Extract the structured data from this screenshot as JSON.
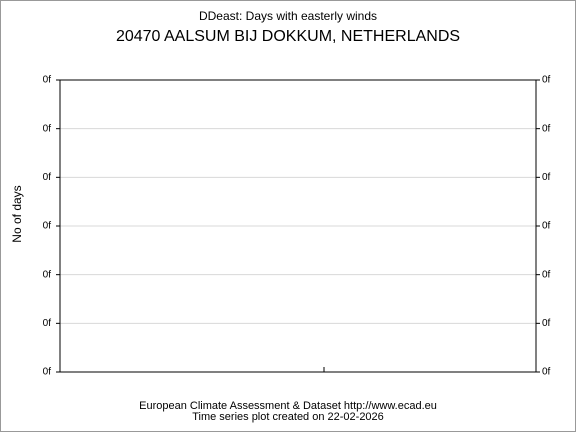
{
  "chart_data": {
    "type": "line",
    "title": "DDeast: Days with easterly winds",
    "subtitle": "20470 AALSUM BIJ DOKKUM, NETHERLANDS",
    "ylabel": "No of days",
    "footer": [
      "European Climate Assessment & Dataset  http://www.ecad.eu",
      "Time series plot created on 22-02-2026"
    ],
    "series": [],
    "ylim": [
      0,
      6
    ],
    "yticks": [
      {
        "value": 0,
        "label": "0f"
      },
      {
        "value": 1,
        "label": "0f"
      },
      {
        "value": 2,
        "label": "0f"
      },
      {
        "value": 3,
        "label": "0f"
      },
      {
        "value": 4,
        "label": "0f"
      },
      {
        "value": 5,
        "label": "0f"
      },
      {
        "value": 6,
        "label": "0f"
      }
    ],
    "grid": true
  }
}
